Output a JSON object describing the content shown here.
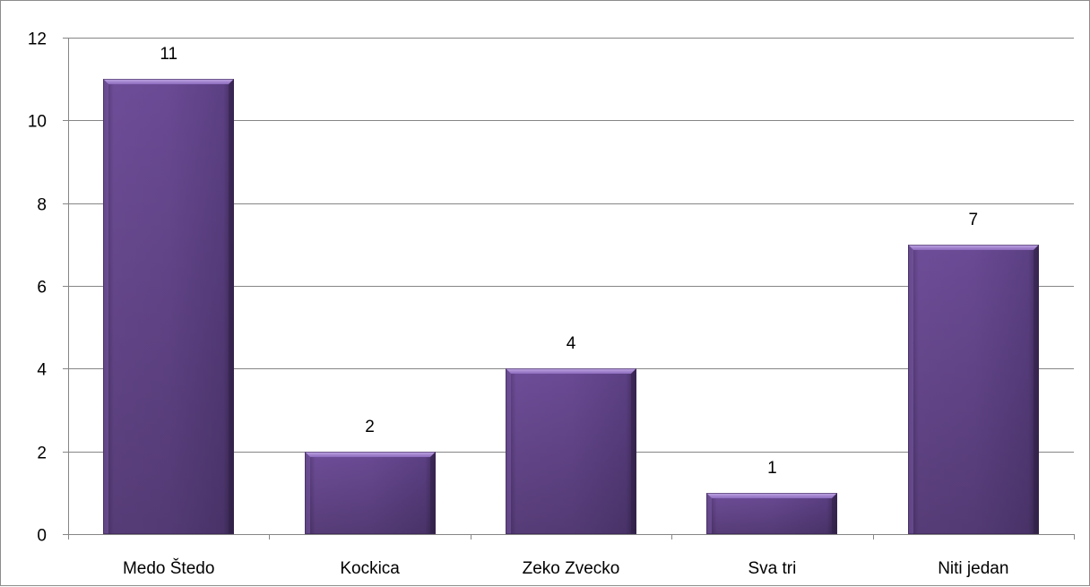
{
  "chart_data": {
    "type": "bar",
    "title": "",
    "xlabel": "",
    "ylabel": "",
    "categories": [
      "Medo Štedo",
      "Kockica",
      "Zeko Zvecko",
      "Sva tri",
      "Niti jedan"
    ],
    "values": [
      11,
      2,
      4,
      1,
      7
    ],
    "data_labels": [
      "11",
      "2",
      "4",
      "1",
      "7"
    ],
    "y_ticks": [
      0,
      2,
      4,
      6,
      8,
      10,
      12
    ],
    "ylim": [
      0,
      12
    ],
    "grid": true,
    "legend": "none",
    "colors": {
      "bar_fill": "#6a4a94",
      "bar_light": "#8a68b8",
      "bar_dark": "#3f2a5c",
      "gridline": "#868686",
      "axis": "#868686"
    }
  }
}
